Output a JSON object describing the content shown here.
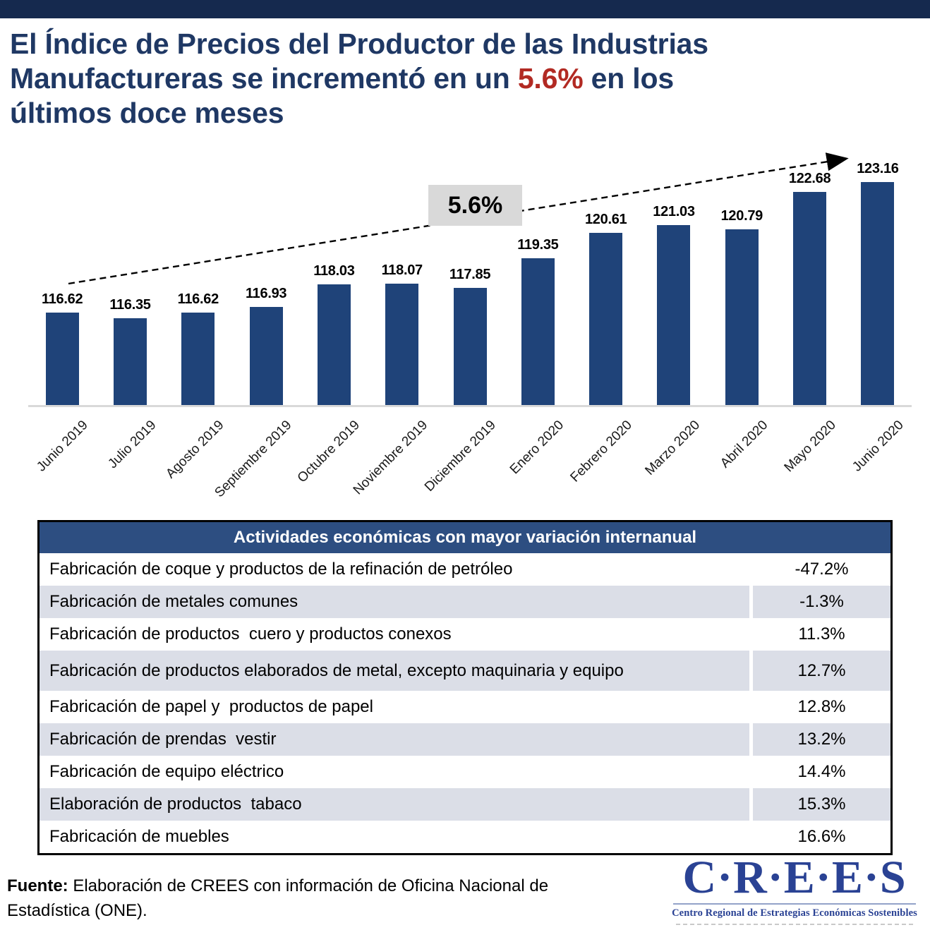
{
  "header": {
    "line1": "El Índice de Precios del Productor de las Industrias",
    "line2_pre": "Manufactureras se incrementó en un ",
    "line2_highlight": "5.6%",
    "line2_post": " en los",
    "line3": "últimos doce meses"
  },
  "chart_data": [
    {
      "type": "bar",
      "categories": [
        "Junio 2019",
        "Julio 2019",
        "Agosto 2019",
        "Septiembre 2019",
        "Octubre 2019",
        "Noviembre 2019",
        "Diciembre 2019",
        "Enero 2020",
        "Febrero 2020",
        "Marzo 2020",
        "Abril 2020",
        "Mayo 2020",
        "Junio 2020"
      ],
      "values": [
        116.62,
        116.35,
        116.62,
        116.93,
        118.03,
        118.07,
        117.85,
        119.35,
        120.61,
        121.03,
        120.79,
        122.68,
        123.16
      ],
      "title": "",
      "xlabel": "",
      "ylabel": "",
      "ylim": [
        112,
        124.5
      ],
      "grid": "off",
      "legend": "none",
      "bar_color": "#1F4379",
      "annotation": {
        "label": "5.6%",
        "note": "dashed arrow from Junio 2019 toward Junio 2020"
      }
    },
    {
      "type": "table",
      "title": "Actividades económicas con mayor variación internanual",
      "rows": [
        {
          "label": "Fabricación de coque y productos de la refinación de petróleo",
          "value": "-47.2%"
        },
        {
          "label": "Fabricación de metales comunes",
          "value": "-1.3%"
        },
        {
          "label": "Fabricación de productos  cuero y productos conexos",
          "value": "11.3%"
        },
        {
          "label": "Fabricación de productos elaborados de metal, excepto maquinaria y equipo",
          "value": "12.7%"
        },
        {
          "label": "Fabricación de papel y  productos de papel",
          "value": "12.8%"
        },
        {
          "label": "Fabricación de prendas  vestir",
          "value": "13.2%"
        },
        {
          "label": "Fabricación de equipo eléctrico",
          "value": "14.4%"
        },
        {
          "label": "Elaboración de productos  tabaco",
          "value": "15.3%"
        },
        {
          "label": "Fabricación de muebles",
          "value": "16.6%"
        }
      ]
    }
  ],
  "footer": {
    "source_label": "Fuente:",
    "source_text": " Elaboración de CREES con información de Oficina Nacional de Estadística (ONE)."
  },
  "logo": {
    "acronym": "C·R·E·E·S",
    "tagline": "Centro Regional de Estrategias Económicas Sostenibles"
  },
  "colors": {
    "topbar": "#15294E",
    "title": "#1F3864",
    "highlight_red": "#B22A23",
    "bar_blue": "#1F4379",
    "table_header": "#2D4E81",
    "row_shaded": "#DBDEE7",
    "annotation_box": "#D9D9D9"
  }
}
